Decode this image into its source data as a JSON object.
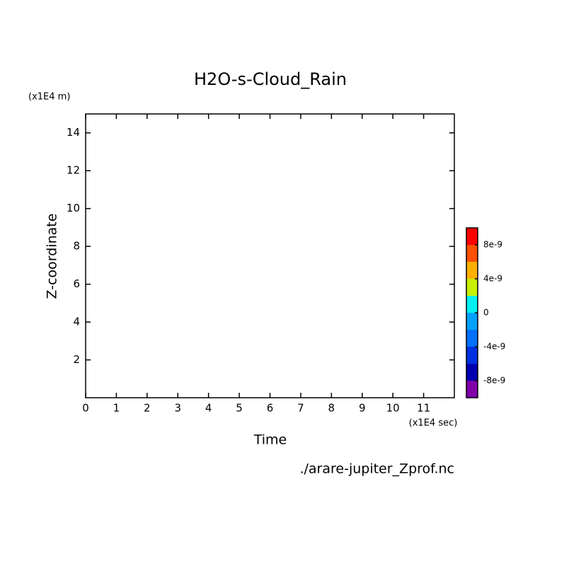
{
  "chart_data": {
    "type": "contour",
    "title": "H2O-s-Cloud_Rain",
    "x_label": "Time",
    "y_label": "Z-coordinate",
    "x_unit": "(x1E4 sec)",
    "y_unit": "(x1E4 m)",
    "source": "./arare-jupiter_Zprof.nc",
    "xlim": [
      0,
      12
    ],
    "xticks": [
      0,
      1,
      2,
      3,
      4,
      5,
      6,
      7,
      8,
      9,
      10,
      11
    ],
    "ylim": [
      0,
      15
    ],
    "yticks": [
      2,
      4,
      6,
      8,
      10,
      12,
      14
    ],
    "colorbar": {
      "levels": [
        -1e-08,
        -8e-09,
        -6e-09,
        -4e-09,
        -2e-09,
        0,
        2e-09,
        4e-09,
        6e-09,
        8e-09,
        1e-08
      ],
      "colors": [
        "#8000a8",
        "#0000b0",
        "#0030e0",
        "#0070ff",
        "#00a0ff",
        "#00f0f0",
        "#c8f000",
        "#ffb000",
        "#ff5000",
        "#ff0000",
        "#ffa8a8"
      ],
      "ticks": [
        -8e-09,
        -4e-09,
        0,
        4e-09,
        8e-09
      ]
    }
  }
}
